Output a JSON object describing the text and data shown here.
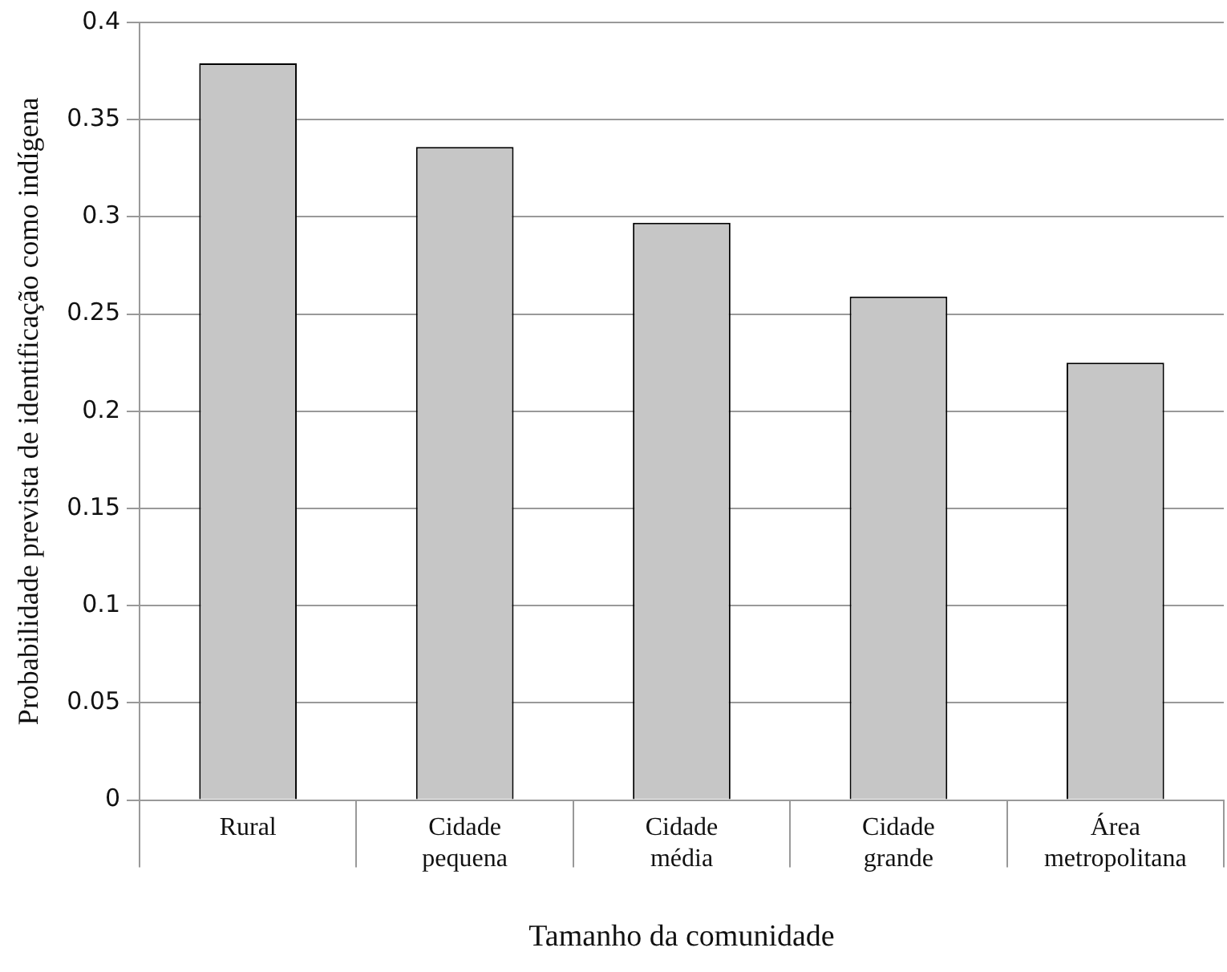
{
  "chart_data": {
    "type": "bar",
    "xlabel": "Tamanho da comunidade",
    "ylabel": "Probabilidade prevista de identificação como indígena",
    "categories": [
      "Rural",
      "Cidade pequena",
      "Cidade média",
      "Cidade grande",
      "Área metropolitana"
    ],
    "values": [
      0.379,
      0.336,
      0.297,
      0.259,
      0.225
    ],
    "color": "#c6c6c6",
    "ylim": [
      0,
      0.4
    ],
    "yticks": [
      0,
      0.05,
      0.1,
      0.15,
      0.2,
      0.25,
      0.3,
      0.35,
      0.4
    ],
    "grid": "y",
    "legend": false
  }
}
